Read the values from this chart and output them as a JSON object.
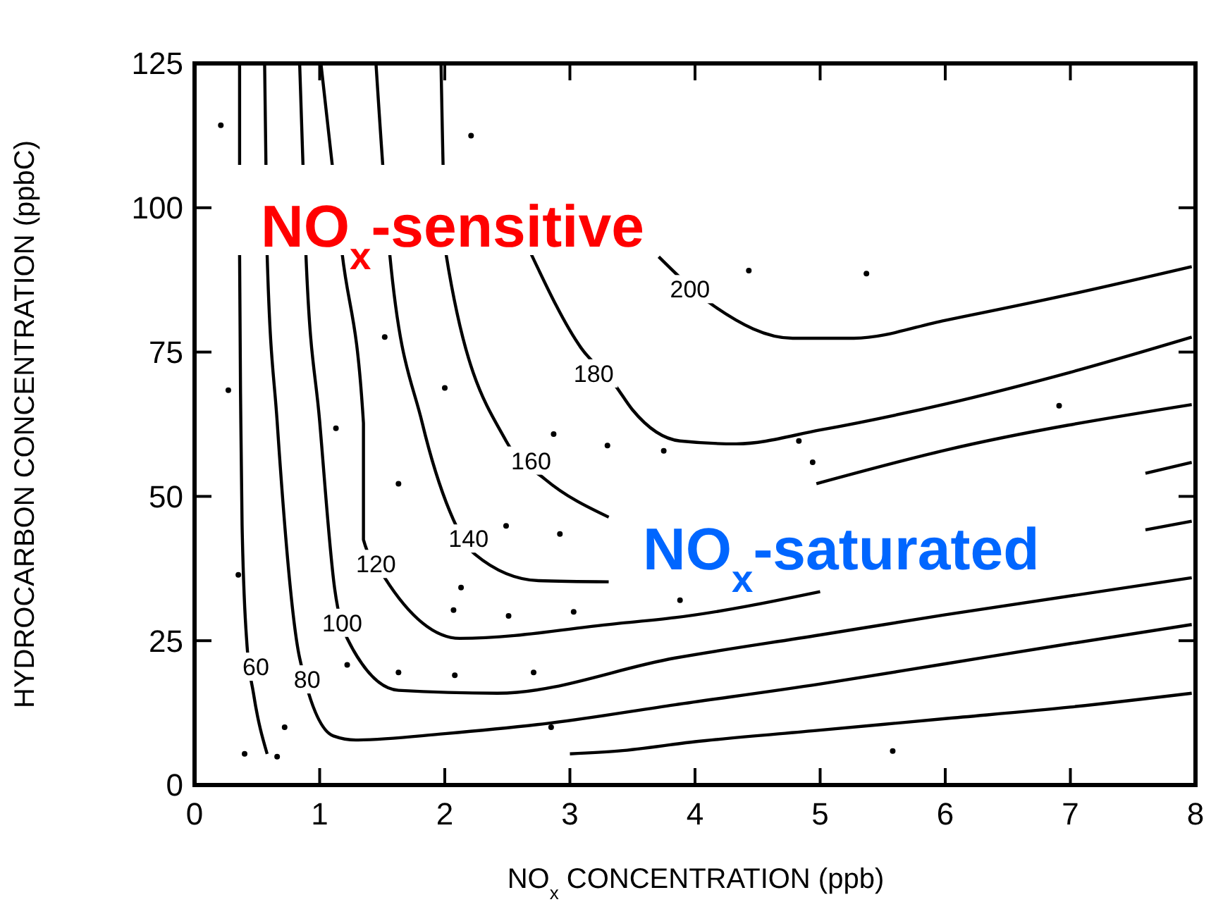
{
  "chart_data": {
    "type": "line",
    "xlabel": "NO$_{x}$ CONCENTRATION (ppb)",
    "ylabel": "HYDROCARBON CONCENTRATION (ppbC)",
    "xlim": [
      0,
      8
    ],
    "xticks": [
      0,
      1,
      2,
      3,
      4,
      5,
      6,
      7,
      8
    ],
    "ylim": [
      0,
      125
    ],
    "yticks": [
      0,
      25,
      50,
      75,
      100,
      125
    ],
    "grid": false,
    "series": [
      {
        "color": "#000000",
        "x": [
          0.36,
          0.36,
          0.37,
          0.38,
          0.42,
          0.47,
          0.58
        ],
        "values": [
          125,
          92,
          62.7,
          45,
          24,
          16,
          5.4
        ]
      },
      {
        "color": "#000000",
        "x": [
          0.56,
          0.58,
          0.66,
          0.84,
          1.11,
          1.29,
          2.0,
          2.83,
          3.84,
          5,
          6,
          7,
          7.97
        ],
        "values": [
          125,
          92,
          63,
          22,
          8.5,
          7.8,
          8.9,
          10.7,
          13.9,
          17.5,
          21,
          24.5,
          27.8
        ]
      },
      {
        "color": "#000000",
        "x": [
          0.84,
          0.89,
          1.0,
          1.12,
          1.22,
          1.63,
          2.42,
          3.84,
          5,
          6,
          7.97
        ],
        "values": [
          125,
          92,
          63,
          34,
          25.4,
          16.4,
          15.9,
          22,
          26,
          29.5,
          35.9
        ]
      },
      {
        "color": "#000000",
        "x": [
          1.01,
          1.18,
          1.35,
          1.35,
          1.52,
          2.12,
          3.39,
          3.84,
          5,
          6,
          7.6,
          7.97
        ],
        "values": [
          125,
          92,
          62.7,
          42.5,
          35.9,
          25.4,
          28,
          29,
          33.5,
          null,
          44.2,
          45.7
        ]
      },
      {
        "color": "#000000",
        "x": [
          1.45,
          1.56,
          1.82,
          2.04,
          2.24,
          2.75,
          3.31,
          4,
          5,
          6,
          7.6,
          7.97
        ],
        "values": [
          125,
          92,
          62.7,
          47.4,
          40,
          35.4,
          35.2,
          null,
          null,
          null,
          54,
          55.9
        ]
      },
      {
        "color": "#000000",
        "x": [
          1.97,
          2.01,
          2.49,
          2.8,
          3.31,
          3.9,
          4.97,
          6,
          7.97
        ],
        "values": [
          125,
          92,
          59.6,
          53,
          46.4,
          null,
          52.2,
          58,
          65.9
        ]
      },
      {
        "color": "#000000",
        "x": [
          2.69,
          3.09,
          3.36,
          3.5,
          3.88,
          4.33,
          5,
          6,
          7,
          7.97
        ],
        "values": [
          92,
          75.7,
          69.3,
          65,
          59.6,
          59.1,
          61.5,
          66,
          71.5,
          77.6
        ]
      },
      {
        "color": "#000000",
        "x": [
          3.71,
          4.15,
          4.78,
          5.27,
          6,
          7,
          7.97
        ],
        "values": [
          91.5,
          83,
          77.4,
          77.4,
          80.5,
          85,
          89.8
        ]
      },
      {
        "color": "#000000",
        "x": [
          3.0,
          3.39,
          4,
          5,
          6,
          7,
          7.97
        ],
        "values": [
          5.4,
          5.9,
          7.5,
          9.5,
          11.5,
          13.5,
          15.9
        ]
      },
      {
        "type": "scatter",
        "color": "#000000",
        "marker": "circle",
        "x": [
          0.21,
          2.21,
          1.52,
          0.27,
          2.0,
          1.13,
          2.87,
          3.3,
          3.75,
          1.63,
          0.35,
          2.13,
          2.49,
          2.92,
          2.07,
          2.51,
          3.03,
          1.22,
          1.63,
          2.08,
          2.71,
          0.72,
          2.85,
          0.4,
          0.66,
          4.43,
          5.37,
          6.91,
          4.83,
          4.94,
          3.88,
          5.58
        ],
        "values": [
          114.3,
          112.5,
          77.6,
          68.4,
          68.8,
          61.8,
          60.8,
          58.8,
          57.9,
          52.2,
          36.4,
          34.2,
          44.9,
          43.5,
          30.3,
          29.3,
          30.0,
          20.8,
          19.5,
          19.0,
          19.5,
          10.0,
          10.0,
          5.4,
          4.9,
          89.1,
          88.6,
          65.7,
          59.6,
          55.9,
          32.0,
          5.9
        ]
      }
    ],
    "annotations": [
      {
        "text": "60",
        "x": 0.49,
        "y": 20.5
      },
      {
        "text": "80",
        "x": 0.9,
        "y": 18.3
      },
      {
        "text": "100",
        "x": 1.18,
        "y": 28.1
      },
      {
        "text": "120",
        "x": 1.45,
        "y": 38.3
      },
      {
        "text": "140",
        "x": 2.19,
        "y": 42.7
      },
      {
        "text": "160",
        "x": 2.69,
        "y": 56.2
      },
      {
        "text": "180",
        "x": 3.19,
        "y": 71.3
      },
      {
        "text": "200",
        "x": 3.96,
        "y": 85.9
      },
      "NO$_{x}$-sensitive",
      "NO$_{x}$-saturated"
    ]
  }
}
